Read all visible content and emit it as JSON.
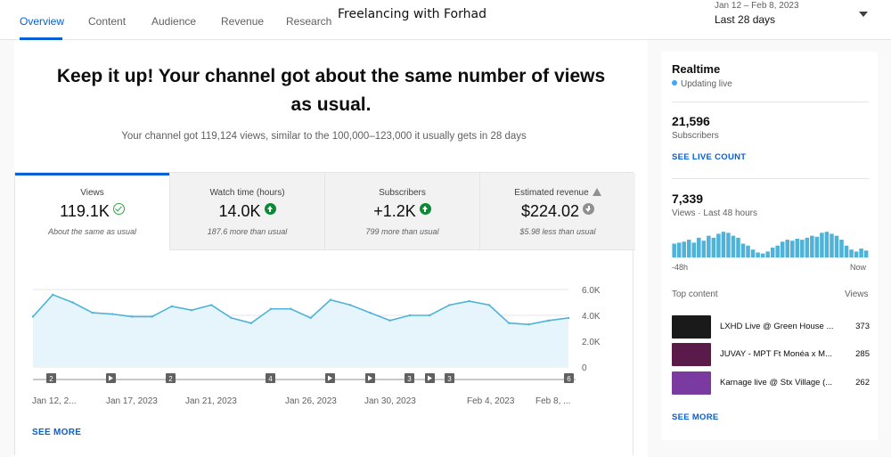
{
  "tabs": [
    {
      "label": "Overview"
    },
    {
      "label": "Content"
    },
    {
      "label": "Audience"
    },
    {
      "label": "Revenue"
    },
    {
      "label": "Research"
    }
  ],
  "channel": {
    "title": "Freelancing with Forhad"
  },
  "date_picker": {
    "range": "Jan 12 – Feb 8, 2023",
    "label": "Last 28 days"
  },
  "summary": {
    "headline_line1": "Keep it up! Your channel got about the same number of views",
    "headline_line2": "as usual.",
    "subline": "Your channel got 119,124 views, similar to the 100,000–123,000 it usually gets in 28 days"
  },
  "metrics": [
    {
      "label": "Views",
      "value": "119.1K",
      "note": "About the same as usual",
      "icon": "check-circle-icon"
    },
    {
      "label": "Watch time (hours)",
      "value": "14.0K",
      "note": "187.6 more than usual",
      "icon": "arrow-up-icon"
    },
    {
      "label": "Subscribers",
      "value": "+1.2K",
      "note": "799 more than usual",
      "icon": "arrow-up-icon"
    },
    {
      "label": "Estimated revenue",
      "value": "$224.02",
      "note": "$5.98 less than usual",
      "icon": "arrow-down-icon"
    }
  ],
  "chart_data": {
    "type": "area",
    "series": [
      {
        "values": [
          3900,
          5600,
          5000,
          4200,
          4100,
          3900,
          3900,
          4700,
          4400,
          4800,
          3800,
          3400,
          4500,
          4500,
          3800,
          5200,
          4800,
          4200,
          3600,
          4000,
          4000,
          4800,
          5100,
          4800,
          3400,
          3300,
          3600,
          3800
        ]
      }
    ],
    "ylim": [
      0,
      6000
    ],
    "y_ticks": [
      "6.0K",
      "4.0K",
      "2.0K",
      "0"
    ],
    "x_tick_labels": [
      "Jan 12, 2...",
      "Jan 17, 2023",
      "Jan 21, 2023",
      "Jan 26, 2023",
      "Jan 30, 2023",
      "Feb 4, 2023",
      "Feb 8, ..."
    ],
    "grid": true,
    "color": "#4fb3d9",
    "fill": "#e6f4fb",
    "markers": [
      {
        "label": "2",
        "kind": "count"
      },
      {
        "label": "",
        "kind": "video"
      },
      {
        "label": "2",
        "kind": "count"
      },
      {
        "label": "4",
        "kind": "count"
      },
      {
        "label": "",
        "kind": "video"
      },
      {
        "label": "",
        "kind": "video"
      },
      {
        "label": "3",
        "kind": "count"
      },
      {
        "label": "",
        "kind": "video"
      },
      {
        "label": "3",
        "kind": "count"
      },
      {
        "label": "6",
        "kind": "count"
      }
    ]
  },
  "see_more": "SEE MORE",
  "realtime": {
    "title": "Realtime",
    "status": "Updating live",
    "subscribers": "21,596",
    "subscribers_label": "Subscribers",
    "live_count_link": "SEE LIVE COUNT",
    "views": "7,339",
    "views_label": "Views · Last 48 hours",
    "bars": [
      14,
      15,
      16,
      18,
      15,
      20,
      17,
      22,
      20,
      24,
      26,
      25,
      22,
      20,
      14,
      12,
      8,
      5,
      4,
      6,
      10,
      12,
      16,
      18,
      17,
      19,
      18,
      20,
      22,
      21,
      25,
      26,
      24,
      22,
      18,
      12,
      8,
      6,
      9,
      7
    ],
    "axis_left": "-48h",
    "axis_right": "Now",
    "top_content_label": "Top content",
    "views_col_label": "Views",
    "videos": [
      {
        "title": "LXHD Live @ Green House ...",
        "views": "373",
        "thumb_color": "#1a1a1a"
      },
      {
        "title": "JUVAY - MPT Ft Monéa x M...",
        "views": "285",
        "thumb_color": "#5a1a4a"
      },
      {
        "title": "Karnage live @ Stx Village (...",
        "views": "262",
        "thumb_color": "#7a3aa0"
      }
    ],
    "see_more": "SEE MORE"
  },
  "colors": {
    "accent": "#065fd4",
    "chart_line": "#4fb3d9",
    "up": "#0a8a34"
  }
}
